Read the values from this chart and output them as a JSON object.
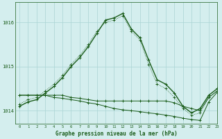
{
  "title": "Graphe pression niveau de la mer (hPa)",
  "bg_color": "#d4eeee",
  "grid_color": "#aad4d4",
  "line_color": "#1a5c1a",
  "xlim": [
    -0.5,
    23
  ],
  "ylim": [
    1013.7,
    1016.45
  ],
  "yticks": [
    1014,
    1015,
    1016
  ],
  "xticks": [
    0,
    1,
    2,
    3,
    4,
    5,
    6,
    7,
    8,
    9,
    10,
    11,
    12,
    13,
    14,
    15,
    16,
    17,
    18,
    19,
    20,
    21,
    22,
    23
  ],
  "series1_x": [
    0,
    1,
    2,
    3,
    4,
    5,
    6,
    7,
    8,
    9,
    10,
    11,
    12,
    13,
    14,
    15,
    16,
    17,
    18,
    19,
    20,
    21,
    22,
    23
  ],
  "series1_y": [
    1014.1,
    1014.2,
    1014.25,
    1014.4,
    1014.55,
    1014.75,
    1015.0,
    1015.2,
    1015.45,
    1015.75,
    1016.05,
    1016.1,
    1016.2,
    1015.85,
    1015.65,
    1015.15,
    1014.7,
    1014.6,
    1014.4,
    1014.1,
    1013.95,
    1014.05,
    1014.35,
    1014.5
  ],
  "series2_x": [
    0,
    1,
    2,
    3,
    4,
    5,
    6,
    7,
    8,
    9,
    10,
    11,
    12,
    13,
    14,
    15,
    16,
    17,
    18,
    19,
    20,
    21,
    22,
    23
  ],
  "series2_y": [
    1014.15,
    1014.25,
    1014.3,
    1014.45,
    1014.6,
    1014.8,
    1015.05,
    1015.25,
    1015.5,
    1015.8,
    1016.0,
    1016.05,
    1016.15,
    1015.8,
    1015.6,
    1015.05,
    1014.6,
    1014.5,
    1014.3,
    1014.05,
    1013.9,
    1013.95,
    1014.3,
    1014.45
  ],
  "series3_x": [
    0,
    1,
    2,
    3,
    4,
    5,
    6,
    7,
    8,
    9,
    10,
    11,
    12,
    13,
    14,
    15,
    16,
    17,
    18,
    19,
    20,
    21,
    22,
    23
  ],
  "series3_y": [
    1014.35,
    1014.35,
    1014.35,
    1014.35,
    1014.35,
    1014.35,
    1014.3,
    1014.28,
    1014.25,
    1014.22,
    1014.22,
    1014.22,
    1014.22,
    1014.22,
    1014.22,
    1014.22,
    1014.22,
    1014.22,
    1014.18,
    1014.1,
    1014.05,
    1014.0,
    1014.3,
    1014.45
  ],
  "series4_x": [
    0,
    1,
    2,
    3,
    4,
    5,
    6,
    7,
    8,
    9,
    10,
    11,
    12,
    13,
    14,
    15,
    16,
    17,
    18,
    19,
    20,
    21,
    22,
    23
  ],
  "series4_y": [
    1014.35,
    1014.35,
    1014.35,
    1014.35,
    1014.3,
    1014.28,
    1014.25,
    1014.22,
    1014.18,
    1014.15,
    1014.1,
    1014.05,
    1014.02,
    1014.0,
    1013.98,
    1013.95,
    1013.93,
    1013.9,
    1013.87,
    1013.83,
    1013.8,
    1013.78,
    1014.2,
    1014.42
  ]
}
